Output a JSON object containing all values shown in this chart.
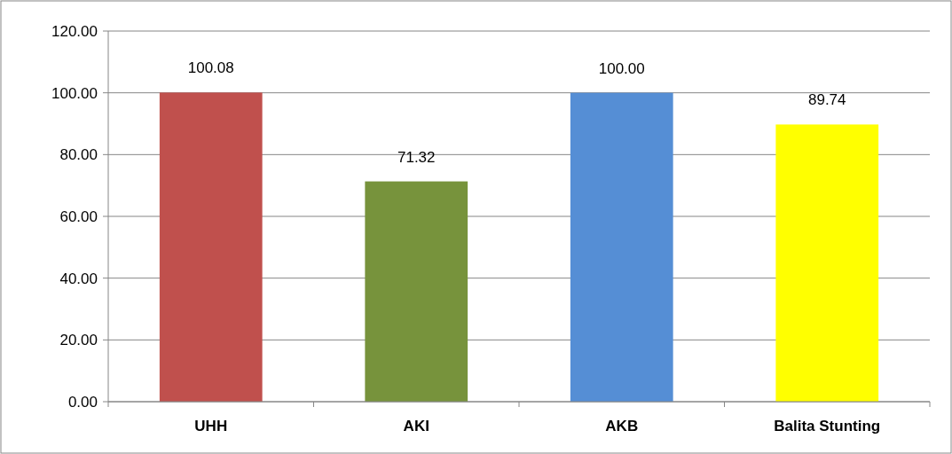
{
  "chart_data": {
    "type": "bar",
    "categories": [
      "UHH",
      "AKI",
      "AKB",
      "Balita Stunting"
    ],
    "values": [
      100.08,
      71.32,
      100.0,
      89.74
    ],
    "colors": [
      "#c0504d",
      "#77933c",
      "#558ed5",
      "#ffff00"
    ],
    "value_labels": [
      "100.08",
      "71.32",
      "100.00",
      "89.74"
    ],
    "ylim": [
      0,
      120
    ],
    "yticks": [
      {
        "value": 0,
        "label": "0.00"
      },
      {
        "value": 20,
        "label": "20.00"
      },
      {
        "value": 40,
        "label": "40.00"
      },
      {
        "value": 60,
        "label": "60.00"
      },
      {
        "value": 80,
        "label": "80.00"
      },
      {
        "value": 100,
        "label": "100.00"
      },
      {
        "value": 120,
        "label": "120.00"
      }
    ],
    "grid": "y"
  }
}
